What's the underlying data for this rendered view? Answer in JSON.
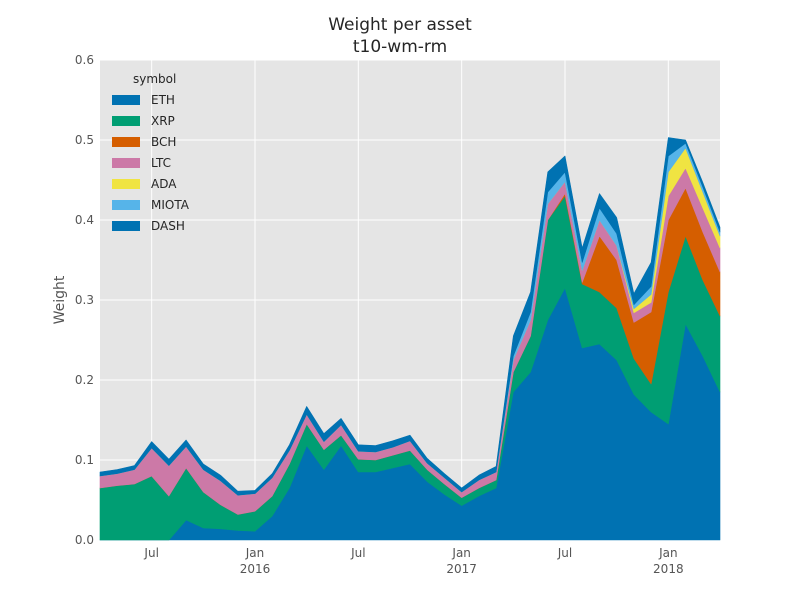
{
  "chart_data": {
    "type": "area",
    "stacked": true,
    "title": "Weight per asset",
    "subtitle": "t10-wm-rm",
    "ylabel": "Weight",
    "xlabel": "",
    "ylim": [
      0,
      0.6
    ],
    "xlim": [
      "2015-04",
      "2018-04"
    ],
    "yticks": [
      0.0,
      0.1,
      0.2,
      0.3,
      0.4,
      0.5,
      0.6
    ],
    "ytick_labels": [
      "0.0",
      "0.1",
      "0.2",
      "0.3",
      "0.4",
      "0.5",
      "0.6"
    ],
    "xticks": [
      {
        "x": "2015-07",
        "label": "Jul",
        "year": ""
      },
      {
        "x": "2016-01",
        "label": "Jan",
        "year": "2016"
      },
      {
        "x": "2016-07",
        "label": "Jul",
        "year": ""
      },
      {
        "x": "2017-01",
        "label": "Jan",
        "year": "2017"
      },
      {
        "x": "2017-07",
        "label": "Jul",
        "year": ""
      },
      {
        "x": "2018-01",
        "label": "Jan",
        "year": "2018"
      }
    ],
    "grid": true,
    "legend_title": "symbol",
    "legend_position": "top-left",
    "x": [
      "2015-04",
      "2015-05",
      "2015-06",
      "2015-07",
      "2015-08",
      "2015-09",
      "2015-10",
      "2015-11",
      "2015-12",
      "2016-01",
      "2016-02",
      "2016-03",
      "2016-04",
      "2016-05",
      "2016-06",
      "2016-07",
      "2016-08",
      "2016-09",
      "2016-10",
      "2016-11",
      "2016-12",
      "2017-01",
      "2017-02",
      "2017-03",
      "2017-04",
      "2017-05",
      "2017-06",
      "2017-07",
      "2017-08",
      "2017-09",
      "2017-10",
      "2017-11",
      "2017-12",
      "2018-01",
      "2018-02",
      "2018-03",
      "2018-04"
    ],
    "series": [
      {
        "name": "ETH",
        "color": "#0072b2",
        "values": [
          0,
          0,
          0,
          0,
          0,
          0.025,
          0.015,
          0.014,
          0.012,
          0.011,
          0.03,
          0.065,
          0.118,
          0.088,
          0.118,
          0.085,
          0.085,
          0.09,
          0.095,
          0.073,
          0.057,
          0.043,
          0.055,
          0.065,
          0.185,
          0.21,
          0.275,
          0.315,
          0.24,
          0.245,
          0.225,
          0.182,
          0.16,
          0.145,
          0.27,
          0.23,
          0.185
        ]
      },
      {
        "name": "XRP",
        "color": "#009e73",
        "values": [
          0.065,
          0.068,
          0.07,
          0.08,
          0.055,
          0.065,
          0.045,
          0.03,
          0.02,
          0.025,
          0.025,
          0.03,
          0.027,
          0.025,
          0.013,
          0.016,
          0.015,
          0.016,
          0.017,
          0.015,
          0.013,
          0.01,
          0.01,
          0.01,
          0.025,
          0.045,
          0.125,
          0.115,
          0.08,
          0.065,
          0.065,
          0.045,
          0.035,
          0.165,
          0.11,
          0.095,
          0.095
        ]
      },
      {
        "name": "BCH",
        "color": "#d55e00",
        "values": [
          0,
          0,
          0,
          0,
          0,
          0,
          0,
          0,
          0,
          0,
          0,
          0,
          0,
          0,
          0,
          0,
          0,
          0,
          0,
          0,
          0,
          0,
          0,
          0,
          0,
          0,
          0,
          0.003,
          0.002,
          0.07,
          0.06,
          0.045,
          0.09,
          0.09,
          0.06,
          0.06,
          0.055
        ]
      },
      {
        "name": "LTC",
        "color": "#cc79a7",
        "values": [
          0.015,
          0.015,
          0.018,
          0.035,
          0.038,
          0.027,
          0.028,
          0.03,
          0.024,
          0.022,
          0.023,
          0.017,
          0.012,
          0.01,
          0.013,
          0.01,
          0.01,
          0.01,
          0.012,
          0.008,
          0.008,
          0.007,
          0.01,
          0.01,
          0.015,
          0.02,
          0.02,
          0.015,
          0.015,
          0.02,
          0.018,
          0.012,
          0.012,
          0.03,
          0.025,
          0.03,
          0.03
        ]
      },
      {
        "name": "ADA",
        "color": "#f0e442",
        "values": [
          0,
          0,
          0,
          0,
          0,
          0,
          0,
          0,
          0,
          0,
          0,
          0,
          0,
          0,
          0,
          0,
          0,
          0,
          0,
          0,
          0,
          0,
          0,
          0,
          0,
          0,
          0,
          0,
          0,
          0,
          0,
          0.005,
          0.01,
          0.03,
          0.025,
          0.02,
          0.015
        ]
      },
      {
        "name": "MIOTA",
        "color": "#56b4e9",
        "values": [
          0,
          0,
          0,
          0,
          0,
          0,
          0,
          0,
          0,
          0,
          0,
          0,
          0,
          0,
          0,
          0,
          0,
          0,
          0,
          0,
          0,
          0,
          0,
          0,
          0.005,
          0.01,
          0.015,
          0.012,
          0.01,
          0.015,
          0.015,
          0.005,
          0.01,
          0.02,
          0.006,
          0.006,
          0.005
        ]
      },
      {
        "name": "DASH",
        "color": "#0072b2",
        "values": [
          0.005,
          0.005,
          0.005,
          0.008,
          0.008,
          0.008,
          0.007,
          0.007,
          0.005,
          0.004,
          0.005,
          0.007,
          0.01,
          0.01,
          0.008,
          0.008,
          0.008,
          0.008,
          0.007,
          0.006,
          0.005,
          0.005,
          0.006,
          0.007,
          0.025,
          0.025,
          0.025,
          0.02,
          0.018,
          0.018,
          0.02,
          0.014,
          0.03,
          0.023,
          0.004,
          0.006,
          0.006
        ]
      }
    ]
  }
}
